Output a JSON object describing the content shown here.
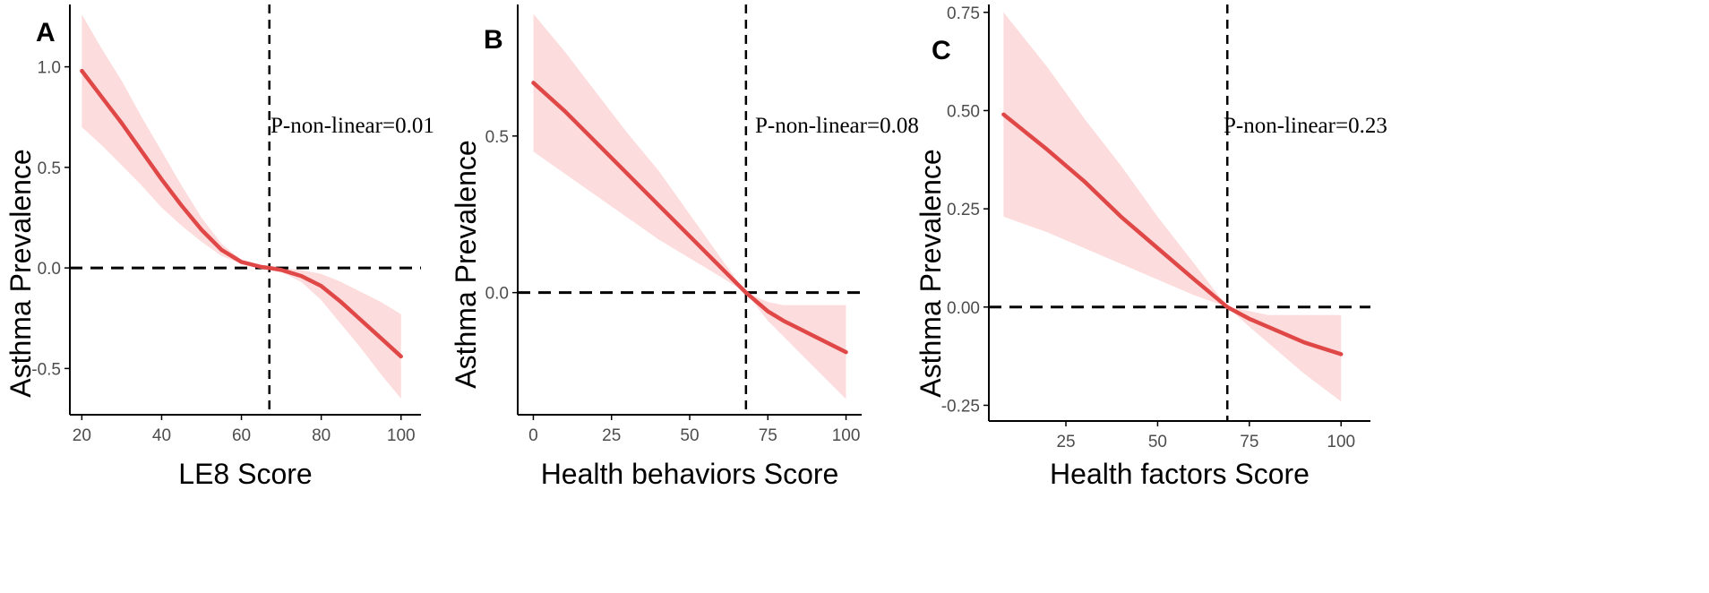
{
  "chart_data": [
    {
      "type": "line",
      "panel": "A",
      "title": "",
      "xlabel": "LE8 Score",
      "ylabel": "Asthma Prevalence",
      "xlim": [
        17,
        105
      ],
      "ylim": [
        -0.73,
        1.31
      ],
      "xticks": [
        20,
        40,
        60,
        80,
        100
      ],
      "xtick_labels": [
        "20",
        "40",
        "60",
        "80",
        "100"
      ],
      "yticks": [
        1.0,
        0.5,
        0.0,
        -0.5
      ],
      "ytick_labels": [
        "1.0",
        "0.5",
        "0.0",
        "-0.5"
      ],
      "reference_x": 67,
      "reference_y": 0,
      "annotation": "P-non-linear=0.01",
      "series": [
        {
          "name": "estimate",
          "x": [
            20,
            25,
            30,
            35,
            40,
            45,
            50,
            55,
            60,
            65,
            67,
            70,
            75,
            80,
            85,
            90,
            95,
            100
          ],
          "values": [
            0.98,
            0.85,
            0.72,
            0.58,
            0.44,
            0.31,
            0.19,
            0.09,
            0.03,
            0.005,
            0,
            -0.01,
            -0.04,
            -0.09,
            -0.17,
            -0.26,
            -0.35,
            -0.44
          ],
          "lower": [
            0.7,
            0.61,
            0.51,
            0.41,
            0.3,
            0.21,
            0.13,
            0.06,
            0.02,
            0.003,
            0,
            -0.02,
            -0.07,
            -0.16,
            -0.28,
            -0.4,
            -0.53,
            -0.65
          ],
          "upper": [
            1.26,
            1.09,
            0.93,
            0.75,
            0.58,
            0.41,
            0.25,
            0.12,
            0.04,
            0.007,
            0,
            0,
            -0.01,
            -0.03,
            -0.07,
            -0.12,
            -0.17,
            -0.23
          ]
        }
      ]
    },
    {
      "type": "line",
      "panel": "B",
      "title": "",
      "xlabel": "Health behaviors Score",
      "ylabel": "Asthma Prevalence",
      "xlim": [
        -5,
        105
      ],
      "ylim": [
        -0.39,
        0.92
      ],
      "xticks": [
        0,
        25,
        50,
        75,
        100
      ],
      "xtick_labels": [
        "0",
        "25",
        "50",
        "75",
        "100"
      ],
      "yticks": [
        0.5,
        0.0
      ],
      "ytick_labels": [
        "0.5",
        "0.0"
      ],
      "reference_x": 68,
      "reference_y": 0,
      "annotation": "P-non-linear=0.08",
      "series": [
        {
          "name": "estimate",
          "x": [
            0,
            10,
            20,
            30,
            40,
            50,
            60,
            68,
            75,
            80,
            90,
            100
          ],
          "values": [
            0.67,
            0.58,
            0.48,
            0.38,
            0.28,
            0.18,
            0.08,
            0,
            -0.06,
            -0.09,
            -0.14,
            -0.19
          ],
          "lower": [
            0.45,
            0.38,
            0.31,
            0.24,
            0.17,
            0.11,
            0.05,
            0,
            -0.09,
            -0.14,
            -0.24,
            -0.34
          ],
          "upper": [
            0.89,
            0.77,
            0.64,
            0.51,
            0.39,
            0.25,
            0.11,
            0,
            -0.03,
            -0.04,
            -0.04,
            -0.04
          ]
        }
      ]
    },
    {
      "type": "line",
      "panel": "C",
      "title": "",
      "xlabel": "Health  factors Score",
      "ylabel": "Asthma Prevalence",
      "xlim": [
        4,
        108
      ],
      "ylim": [
        -0.29,
        0.77
      ],
      "xticks": [
        25,
        50,
        75,
        100
      ],
      "xtick_labels": [
        "25",
        "50",
        "75",
        "100"
      ],
      "yticks": [
        0.75,
        0.5,
        0.25,
        0.0,
        -0.25
      ],
      "ytick_labels": [
        "0.75",
        "0.50",
        "0.25",
        "0.00",
        "-0.25"
      ],
      "reference_x": 69,
      "reference_y": 0,
      "annotation": "P-non-linear=0.23",
      "series": [
        {
          "name": "estimate",
          "x": [
            8,
            20,
            30,
            40,
            50,
            60,
            69,
            75,
            80,
            90,
            100
          ],
          "values": [
            0.49,
            0.4,
            0.32,
            0.23,
            0.15,
            0.07,
            0,
            -0.03,
            -0.05,
            -0.09,
            -0.12
          ],
          "lower": [
            0.23,
            0.19,
            0.15,
            0.11,
            0.07,
            0.03,
            0,
            -0.05,
            -0.09,
            -0.17,
            -0.24
          ],
          "upper": [
            0.75,
            0.61,
            0.48,
            0.36,
            0.23,
            0.11,
            0,
            -0.01,
            -0.02,
            -0.02,
            -0.02
          ]
        }
      ]
    }
  ],
  "colors": {
    "line": "#e04848",
    "band": "#fcdcdc",
    "reference": "#000000",
    "axis": "#000000",
    "tick_label": "#4d4d4d"
  }
}
